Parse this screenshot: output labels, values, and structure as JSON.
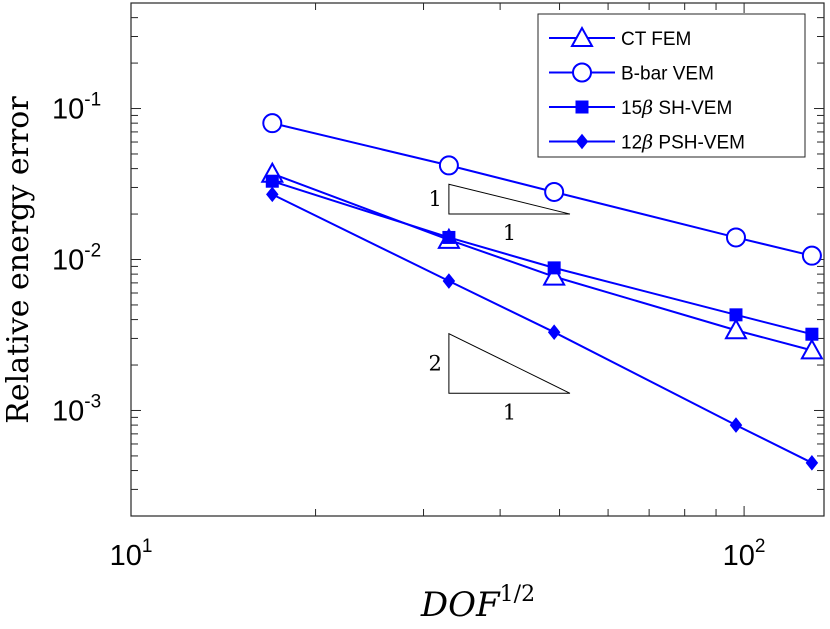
{
  "chart_data": {
    "type": "line",
    "xscale": "log",
    "yscale": "log",
    "xlim": [
      10,
      135
    ],
    "ylim": [
      0.0002,
      0.5
    ],
    "xlabel": {
      "base": "DOF",
      "exponent": "1/2"
    },
    "ylabel": "Relative energy error",
    "x_ticks": [
      {
        "value": 10,
        "base": "10",
        "exp": "1"
      },
      {
        "value": 100,
        "base": "10",
        "exp": "2"
      }
    ],
    "y_ticks": [
      {
        "value": 0.1,
        "base": "10",
        "exp": "-1"
      },
      {
        "value": 0.01,
        "base": "10",
        "exp": "-2"
      },
      {
        "value": 0.001,
        "base": "10",
        "exp": "-3"
      }
    ],
    "x": [
      17,
      33,
      49,
      97,
      129
    ],
    "series": [
      {
        "name": "CT FEM",
        "name_symbol": "",
        "name_suffix": "CT FEM",
        "marker": "triangle-open",
        "color": "#0000ff",
        "values": [
          0.037,
          0.0135,
          0.0077,
          0.0034,
          0.0025
        ]
      },
      {
        "name": "B-bar VEM",
        "name_symbol": "",
        "name_suffix": "B-bar VEM",
        "marker": "circle-open",
        "color": "#0000ff",
        "values": [
          0.08,
          0.042,
          0.028,
          0.014,
          0.0106
        ]
      },
      {
        "name": "15β SH-VEM",
        "name_symbol": "15β",
        "name_suffix": " SH-VEM",
        "marker": "square-filled",
        "color": "#0000ff",
        "values": [
          0.033,
          0.014,
          0.0088,
          0.0043,
          0.0032
        ]
      },
      {
        "name": "12β PSH-VEM",
        "name_symbol": "12β",
        "name_suffix": " PSH-VEM",
        "marker": "diamond-filled",
        "color": "#0000ff",
        "values": [
          0.027,
          0.0072,
          0.0033,
          0.0008,
          0.00045
        ]
      }
    ],
    "legend_position": "top-right",
    "slope_triangles": [
      {
        "x0": 33,
        "x1": 52,
        "y_base": 0.02,
        "rise": "1",
        "run": "1",
        "slope": 1
      },
      {
        "x0": 33,
        "x1": 52,
        "y_base": 0.0013,
        "rise": "2",
        "run": "1",
        "slope": 2
      }
    ],
    "grid": false
  }
}
